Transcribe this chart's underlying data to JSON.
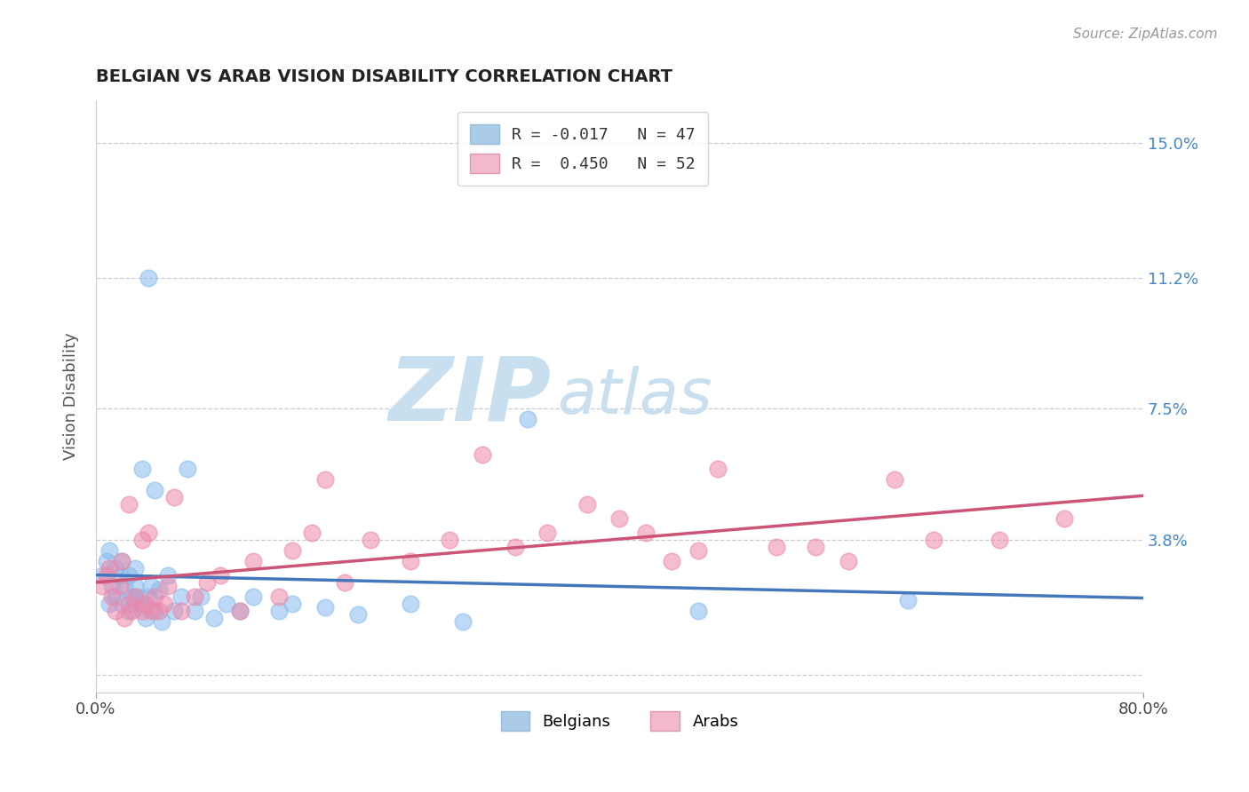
{
  "title": "BELGIAN VS ARAB VISION DISABILITY CORRELATION CHART",
  "source": "Source: ZipAtlas.com",
  "xlabel": "",
  "ylabel": "Vision Disability",
  "xlim": [
    0.0,
    0.8
  ],
  "ylim": [
    -0.005,
    0.162
  ],
  "yticks": [
    0.0,
    0.038,
    0.075,
    0.112,
    0.15
  ],
  "ytick_labels": [
    "",
    "3.8%",
    "7.5%",
    "11.2%",
    "15.0%"
  ],
  "xticks": [
    0.0,
    0.8
  ],
  "xtick_labels": [
    "0.0%",
    "80.0%"
  ],
  "legend_items": [
    {
      "label": "R = -0.017   N = 47",
      "color": "#aacce8"
    },
    {
      "label": "R =  0.450   N = 52",
      "color": "#f4b8cc"
    }
  ],
  "legend_bottom": [
    "Belgians",
    "Arabs"
  ],
  "belgian_color": "#88bbee",
  "arab_color": "#ee88aa",
  "trendline_belgian_color": "#4477bb",
  "trendline_arab_color": "#cc5577",
  "watermark_top": "ZIP",
  "watermark_bottom": "atlas",
  "watermark_color": "#c8dff0",
  "background_color": "#ffffff",
  "belgians_x": [
    0.005,
    0.008,
    0.01,
    0.01,
    0.012,
    0.015,
    0.015,
    0.018,
    0.02,
    0.02,
    0.022,
    0.025,
    0.025,
    0.028,
    0.03,
    0.03,
    0.03,
    0.032,
    0.035,
    0.035,
    0.038,
    0.04,
    0.04,
    0.042,
    0.045,
    0.045,
    0.048,
    0.05,
    0.055,
    0.06,
    0.065,
    0.07,
    0.075,
    0.08,
    0.09,
    0.1,
    0.11,
    0.12,
    0.14,
    0.15,
    0.175,
    0.2,
    0.24,
    0.28,
    0.33,
    0.46,
    0.62
  ],
  "belgians_y": [
    0.028,
    0.032,
    0.02,
    0.035,
    0.025,
    0.022,
    0.03,
    0.028,
    0.02,
    0.032,
    0.025,
    0.018,
    0.028,
    0.022,
    0.02,
    0.025,
    0.03,
    0.022,
    0.02,
    0.058,
    0.016,
    0.022,
    0.112,
    0.025,
    0.052,
    0.018,
    0.024,
    0.015,
    0.028,
    0.018,
    0.022,
    0.058,
    0.018,
    0.022,
    0.016,
    0.02,
    0.018,
    0.022,
    0.018,
    0.02,
    0.019,
    0.017,
    0.02,
    0.015,
    0.072,
    0.018,
    0.021
  ],
  "arabs_x": [
    0.005,
    0.008,
    0.01,
    0.012,
    0.015,
    0.018,
    0.02,
    0.022,
    0.025,
    0.025,
    0.028,
    0.03,
    0.035,
    0.035,
    0.038,
    0.04,
    0.042,
    0.045,
    0.048,
    0.052,
    0.055,
    0.06,
    0.065,
    0.075,
    0.085,
    0.095,
    0.11,
    0.12,
    0.14,
    0.15,
    0.165,
    0.175,
    0.19,
    0.21,
    0.24,
    0.27,
    0.295,
    0.32,
    0.345,
    0.375,
    0.4,
    0.42,
    0.44,
    0.46,
    0.475,
    0.52,
    0.55,
    0.575,
    0.61,
    0.64,
    0.69,
    0.74
  ],
  "arabs_y": [
    0.025,
    0.028,
    0.03,
    0.022,
    0.018,
    0.025,
    0.032,
    0.016,
    0.02,
    0.048,
    0.018,
    0.022,
    0.038,
    0.018,
    0.02,
    0.04,
    0.018,
    0.022,
    0.018,
    0.02,
    0.025,
    0.05,
    0.018,
    0.022,
    0.026,
    0.028,
    0.018,
    0.032,
    0.022,
    0.035,
    0.04,
    0.055,
    0.026,
    0.038,
    0.032,
    0.038,
    0.062,
    0.036,
    0.04,
    0.048,
    0.044,
    0.04,
    0.032,
    0.035,
    0.058,
    0.036,
    0.036,
    0.032,
    0.055,
    0.038,
    0.038,
    0.044
  ]
}
